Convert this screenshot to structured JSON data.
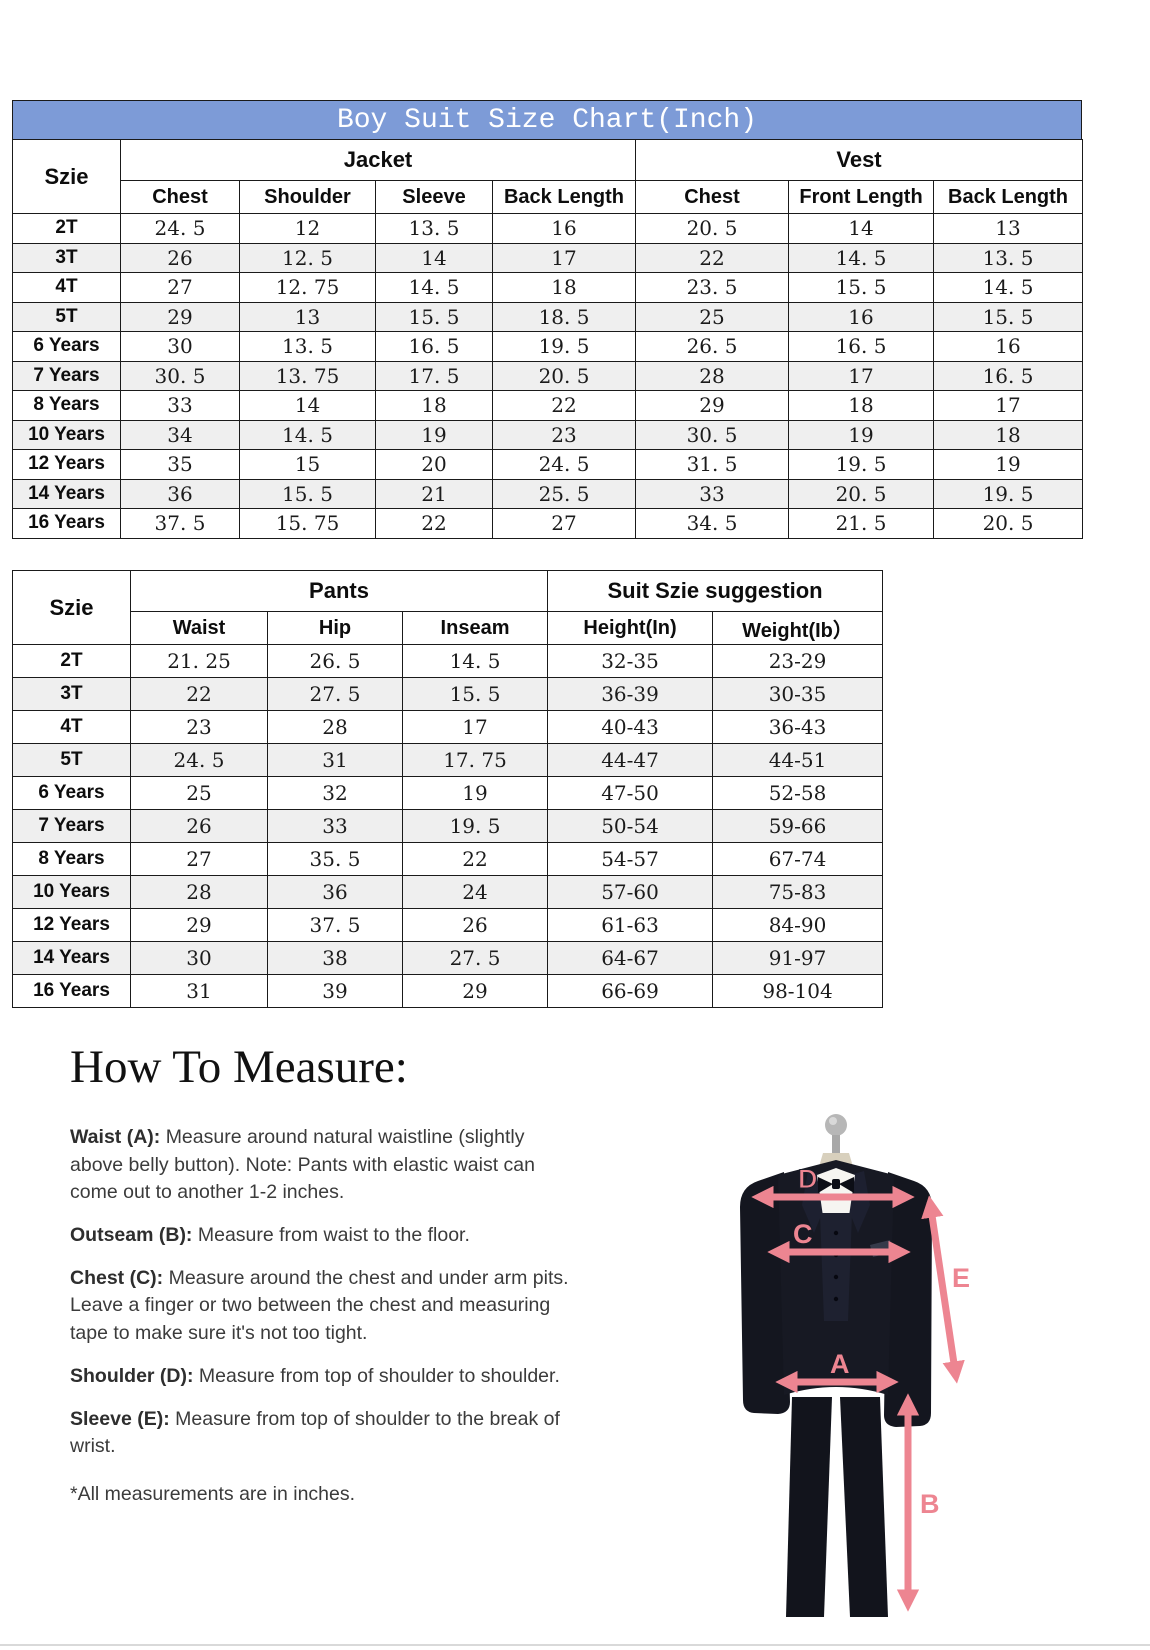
{
  "table1": {
    "title": "Boy Suit Size Chart(Inch)",
    "title_bg_color": "#7d9bd7",
    "size_header": "Szie",
    "groups": [
      {
        "label": "Jacket",
        "cols": [
          "Chest",
          "Shoulder",
          "Sleeve",
          "Back Length"
        ]
      },
      {
        "label": "Vest",
        "cols": [
          "Chest",
          "Front Length",
          "Back Length"
        ]
      }
    ],
    "rows": [
      {
        "size": "2T",
        "values": [
          "24. 5",
          "12",
          "13. 5",
          "16",
          "20. 5",
          "14",
          "13"
        ]
      },
      {
        "size": "3T",
        "values": [
          "26",
          "12. 5",
          "14",
          "17",
          "22",
          "14. 5",
          "13. 5"
        ]
      },
      {
        "size": "4T",
        "values": [
          "27",
          "12. 75",
          "14. 5",
          "18",
          "23. 5",
          "15. 5",
          "14. 5"
        ]
      },
      {
        "size": "5T",
        "values": [
          "29",
          "13",
          "15. 5",
          "18. 5",
          "25",
          "16",
          "15. 5"
        ]
      },
      {
        "size": "6 Years",
        "values": [
          "30",
          "13. 5",
          "16. 5",
          "19. 5",
          "26. 5",
          "16. 5",
          "16"
        ]
      },
      {
        "size": "7 Years",
        "values": [
          "30. 5",
          "13. 75",
          "17. 5",
          "20. 5",
          "28",
          "17",
          "16. 5"
        ]
      },
      {
        "size": "8 Years",
        "values": [
          "33",
          "14",
          "18",
          "22",
          "29",
          "18",
          "17"
        ]
      },
      {
        "size": "10 Years",
        "values": [
          "34",
          "14. 5",
          "19",
          "23",
          "30. 5",
          "19",
          "18"
        ]
      },
      {
        "size": "12 Years",
        "values": [
          "35",
          "15",
          "20",
          "24. 5",
          "31. 5",
          "19. 5",
          "19"
        ]
      },
      {
        "size": "14 Years",
        "values": [
          "36",
          "15. 5",
          "21",
          "25. 5",
          "33",
          "20. 5",
          "19. 5"
        ]
      },
      {
        "size": "16 Years",
        "values": [
          "37. 5",
          "15. 75",
          "22",
          "27",
          "34. 5",
          "21. 5",
          "20. 5"
        ]
      }
    ]
  },
  "table2": {
    "size_header": "Szie",
    "groups": [
      {
        "label": "Pants",
        "cols": [
          "Waist",
          "Hip",
          "Inseam"
        ]
      },
      {
        "label": "Suit Szie suggestion",
        "cols": [
          "Height(In)",
          "Weight(Ib）"
        ]
      }
    ],
    "rows": [
      {
        "size": "2T",
        "values": [
          "21. 25",
          "26. 5",
          "14. 5",
          "32-35",
          "23-29"
        ]
      },
      {
        "size": "3T",
        "values": [
          "22",
          "27. 5",
          "15. 5",
          "36-39",
          "30-35"
        ]
      },
      {
        "size": "4T",
        "values": [
          "23",
          "28",
          "17",
          "40-43",
          "36-43"
        ]
      },
      {
        "size": "5T",
        "values": [
          "24. 5",
          "31",
          "17. 75",
          "44-47",
          "44-51"
        ]
      },
      {
        "size": "6 Years",
        "values": [
          "25",
          "32",
          "19",
          "47-50",
          "52-58"
        ]
      },
      {
        "size": "7 Years",
        "values": [
          "26",
          "33",
          "19. 5",
          "50-54",
          "59-66"
        ]
      },
      {
        "size": "8 Years",
        "values": [
          "27",
          "35. 5",
          "22",
          "54-57",
          "67-74"
        ]
      },
      {
        "size": "10 Years",
        "values": [
          "28",
          "36",
          "24",
          "57-60",
          "75-83"
        ]
      },
      {
        "size": "12 Years",
        "values": [
          "29",
          "37. 5",
          "26",
          "61-63",
          "84-90"
        ]
      },
      {
        "size": "14 Years",
        "values": [
          "30",
          "38",
          "27. 5",
          "64-67",
          "91-97"
        ]
      },
      {
        "size": "16 Years",
        "values": [
          "31",
          "39",
          "29",
          "66-69",
          "98-104"
        ]
      }
    ]
  },
  "how_to_measure": {
    "title": "How To Measure:",
    "items": [
      {
        "label": "Waist (A):",
        "text": "Measure around natural waistline (slightly above belly button). Note: Pants with elastic waist can come out to another 1-2 inches."
      },
      {
        "label": "Outseam (B):",
        "text": "Measure from waist to the floor."
      },
      {
        "label": "Chest (C):",
        "text": "Measure around the chest and under arm pits. Leave a finger or two between the chest and measuring tape to make sure it's not too tight."
      },
      {
        "label": "Shoulder (D):",
        "text": "Measure from top of shoulder to shoulder."
      },
      {
        "label": "Sleeve (E):",
        "text": "Measure from top of shoulder to the break of wrist."
      }
    ],
    "footnote": "*All measurements are in inches."
  },
  "figure": {
    "arrow_color": "#ed8591",
    "suit_color": "#171923",
    "labels": {
      "a": "A",
      "b": "B",
      "c": "C",
      "d": "D",
      "e": "E"
    }
  }
}
